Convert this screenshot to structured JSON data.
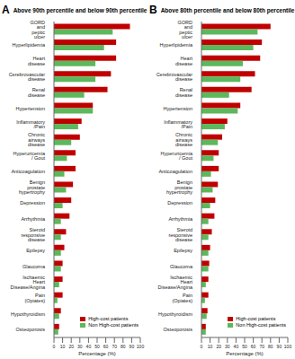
{
  "chart_data": [
    {
      "type": "bar",
      "panel_label": "A",
      "title": "Above 90th percentile and below 90th percentile",
      "x_label": "Percentage (%)",
      "orientation": "horizontal",
      "grid": false,
      "legend": "lower right",
      "categories": [
        "GORD and peptic ulcer",
        "Hyperlipidemia",
        "Heart disease",
        "Cerebrovascular disease",
        "Renal disease",
        "Hypertension",
        "Inflammatory /Pain",
        "Chronic airways disease",
        "Hyperuricemia / Gout",
        "Anticoagulation",
        "Benign prostate hypertrophy",
        "Depression",
        "Arrhythmia",
        "Steroid responsive disease",
        "Epilepsy",
        "Glaucoma",
        "Ischaemic Heart Disease/Angina",
        "Pain (Opiates)",
        "Hypothyroidism",
        "Osteoporosis"
      ],
      "series": [
        {
          "name": "High-cost patients",
          "color": "#c00000",
          "values": [
            88,
            72,
            72,
            66,
            62,
            45,
            32,
            30,
            25,
            25,
            22,
            20,
            18,
            14,
            12,
            10,
            10,
            10,
            8,
            6
          ]
        },
        {
          "name": "Non High-cost patients",
          "color": "#5cb85c",
          "values": [
            68,
            58,
            48,
            48,
            35,
            45,
            28,
            20,
            15,
            12,
            14,
            10,
            8,
            8,
            8,
            8,
            6,
            4,
            6,
            5
          ]
        }
      ],
      "xlim": [
        0,
        100
      ],
      "xticks": [
        0,
        10,
        20,
        30,
        40,
        50,
        60,
        70,
        80,
        90,
        100
      ]
    },
    {
      "type": "bar",
      "panel_label": "B",
      "title": "Above 80th percentile and below 80th percentile",
      "x_label": "Percentage (%)",
      "orientation": "horizontal",
      "grid": false,
      "legend": "lower right",
      "categories": [
        "GORD and peptic ulcer",
        "Hyperlipidemia",
        "Heart disease",
        "Cerebrovascular disease",
        "Renal disease",
        "Hypertension",
        "Inflammatory /Pain",
        "Chronic airways disease",
        "Hyperuricemia / Gout",
        "Anticoagulation",
        "Benign prostate hypertrophy",
        "Depression",
        "Arrhythmia",
        "Steroid responsive disease",
        "Epilepsy",
        "Glaucoma",
        "Ischaemic Heart Disease/Angina",
        "Pain (Opiates)",
        "Hypothyroidism",
        "Osteoporosis"
      ],
      "series": [
        {
          "name": "High-cost patients",
          "color": "#c00000",
          "values": [
            80,
            70,
            68,
            62,
            58,
            45,
            30,
            24,
            20,
            20,
            19,
            16,
            15,
            12,
            10,
            9,
            8,
            8,
            7,
            5
          ]
        },
        {
          "name": "Non High-cost patients",
          "color": "#5cb85c",
          "values": [
            65,
            60,
            48,
            45,
            32,
            42,
            27,
            19,
            14,
            11,
            13,
            10,
            8,
            8,
            8,
            8,
            5,
            4,
            6,
            5
          ]
        }
      ],
      "xlim": [
        0,
        100
      ],
      "xticks": [
        0,
        10,
        20,
        30,
        40,
        50,
        60,
        70,
        80,
        90,
        100
      ]
    }
  ]
}
